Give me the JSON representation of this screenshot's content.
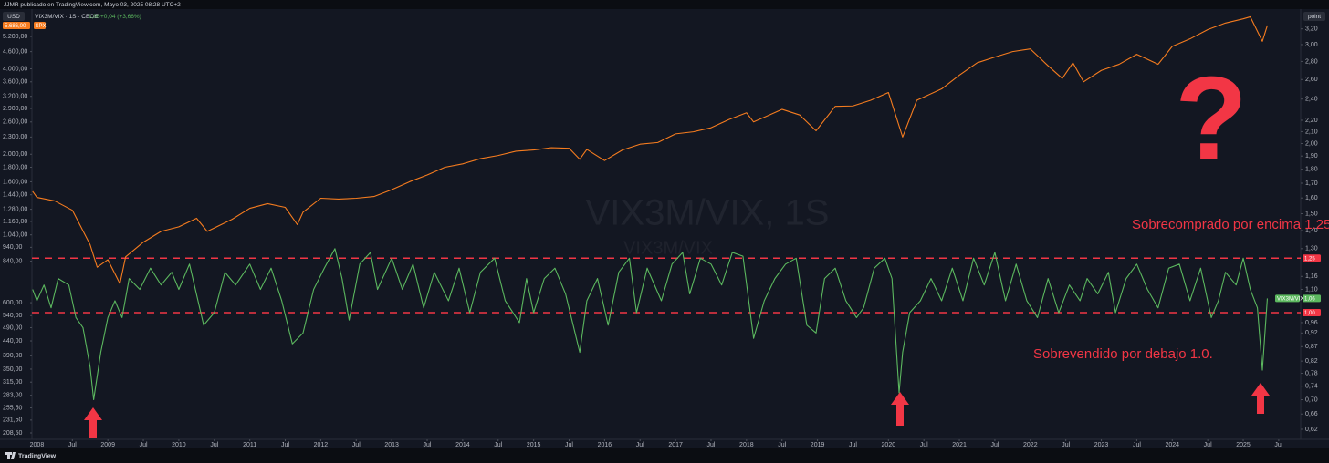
{
  "header": {
    "text": "JJMR publicado en TradingView.com, Mayo 03, 2025 08:28 UTC+2"
  },
  "toolbar": {
    "currency": "USD",
    "scale_mode": "point"
  },
  "footer": {
    "brand": "TradingView"
  },
  "chart_data": {
    "type": "line",
    "watermark": [
      "VIX3M/VIX, 1S",
      "VIX3M/VIX"
    ],
    "legend": {
      "symbol": "VIX3M/VIX · 1S · CBOE",
      "change": "+0,04 (+3,66%)"
    },
    "xlim": [
      2007.93,
      2025.81
    ],
    "xticks": [
      {
        "value": 2008,
        "label": "2008"
      },
      {
        "value": 2008.5,
        "label": "Jul"
      },
      {
        "value": 2009,
        "label": "2009"
      },
      {
        "value": 2009.5,
        "label": "Jul"
      },
      {
        "value": 2010,
        "label": "2010"
      },
      {
        "value": 2010.5,
        "label": "Jul"
      },
      {
        "value": 2011,
        "label": "2011"
      },
      {
        "value": 2011.5,
        "label": "Jul"
      },
      {
        "value": 2012,
        "label": "2012"
      },
      {
        "value": 2012.5,
        "label": "Jul"
      },
      {
        "value": 2013,
        "label": "2013"
      },
      {
        "value": 2013.5,
        "label": "Jul"
      },
      {
        "value": 2014,
        "label": "2014"
      },
      {
        "value": 2014.5,
        "label": "Jul"
      },
      {
        "value": 2015,
        "label": "2015"
      },
      {
        "value": 2015.5,
        "label": "Jul"
      },
      {
        "value": 2016,
        "label": "2016"
      },
      {
        "value": 2016.5,
        "label": "Jul"
      },
      {
        "value": 2017,
        "label": "2017"
      },
      {
        "value": 2017.5,
        "label": "Jul"
      },
      {
        "value": 2018,
        "label": "2018"
      },
      {
        "value": 2018.5,
        "label": "Jul"
      },
      {
        "value": 2019,
        "label": "2019"
      },
      {
        "value": 2019.5,
        "label": "Jul"
      },
      {
        "value": 2020,
        "label": "2020"
      },
      {
        "value": 2020.5,
        "label": "Jul"
      },
      {
        "value": 2021,
        "label": "2021"
      },
      {
        "value": 2021.5,
        "label": "Jul"
      },
      {
        "value": 2022,
        "label": "2022"
      },
      {
        "value": 2022.5,
        "label": "Jul"
      },
      {
        "value": 2023,
        "label": "2023"
      },
      {
        "value": 2023.5,
        "label": "Jul"
      },
      {
        "value": 2024,
        "label": "2024"
      },
      {
        "value": 2024.5,
        "label": "Jul"
      },
      {
        "value": 2025,
        "label": "2025"
      },
      {
        "value": 2025.5,
        "label": "Jul"
      }
    ],
    "ylim": [
      198,
      6494
    ],
    "ylog": true,
    "yticks": [
      {
        "value": 5200,
        "label": "5.200,00"
      },
      {
        "value": 4600,
        "label": "4.600,00"
      },
      {
        "value": 4000,
        "label": "4.000,00"
      },
      {
        "value": 3600,
        "label": "3.600,00"
      },
      {
        "value": 3200,
        "label": "3.200,00"
      },
      {
        "value": 2900,
        "label": "2.900,00"
      },
      {
        "value": 2600,
        "label": "2.600,00"
      },
      {
        "value": 2300,
        "label": "2.300,00"
      },
      {
        "value": 2000,
        "label": "2.000,00"
      },
      {
        "value": 1800,
        "label": "1.800,00"
      },
      {
        "value": 1600,
        "label": "1.600,00"
      },
      {
        "value": 1440,
        "label": "1.440,00"
      },
      {
        "value": 1280,
        "label": "1.280,00"
      },
      {
        "value": 1160,
        "label": "1.160,00"
      },
      {
        "value": 1040,
        "label": "1.040,00"
      },
      {
        "value": 940,
        "label": "940,00"
      },
      {
        "value": 840,
        "label": "840,00"
      },
      {
        "value": 600,
        "label": "600,00"
      },
      {
        "value": 540,
        "label": "540,00"
      },
      {
        "value": 490,
        "label": "490,00"
      },
      {
        "value": 440,
        "label": "440,00"
      },
      {
        "value": 390,
        "label": "390,00"
      },
      {
        "value": 350,
        "label": "350,00"
      },
      {
        "value": 315,
        "label": "315,00"
      },
      {
        "value": 283,
        "label": "283,00"
      },
      {
        "value": 255.5,
        "label": "255,50"
      },
      {
        "value": 231.5,
        "label": "231,50"
      },
      {
        "value": 208.5,
        "label": "208,50"
      }
    ],
    "y2lim": [
      0.595,
      3.47
    ],
    "y2log": true,
    "y2ticks": [
      {
        "value": 3.2,
        "label": "3,20"
      },
      {
        "value": 3.0,
        "label": "3,00"
      },
      {
        "value": 2.8,
        "label": "2,80"
      },
      {
        "value": 2.6,
        "label": "2,60"
      },
      {
        "value": 2.4,
        "label": "2,40"
      },
      {
        "value": 2.2,
        "label": "2,20"
      },
      {
        "value": 2.1,
        "label": "2,10"
      },
      {
        "value": 2.0,
        "label": "2,00"
      },
      {
        "value": 1.9,
        "label": "1,90"
      },
      {
        "value": 1.8,
        "label": "1,80"
      },
      {
        "value": 1.7,
        "label": "1,70"
      },
      {
        "value": 1.6,
        "label": "1,60"
      },
      {
        "value": 1.5,
        "label": "1,50"
      },
      {
        "value": 1.4,
        "label": "1,40"
      },
      {
        "value": 1.3,
        "label": "1,30"
      },
      {
        "value": 1.16,
        "label": "1,16"
      },
      {
        "value": 1.1,
        "label": "1,10"
      },
      {
        "value": 0.96,
        "label": "0,96"
      },
      {
        "value": 0.92,
        "label": "0,92"
      },
      {
        "value": 0.87,
        "label": "0,87"
      },
      {
        "value": 0.82,
        "label": "0,82"
      },
      {
        "value": 0.78,
        "label": "0,78"
      },
      {
        "value": 0.74,
        "label": "0,74"
      },
      {
        "value": 0.7,
        "label": "0,70"
      },
      {
        "value": 0.66,
        "label": "0,66"
      },
      {
        "value": 0.62,
        "label": "0,62"
      }
    ],
    "grid": false,
    "series": [
      {
        "name": "SPX",
        "color": "#f57c1f",
        "axis": "y",
        "last_label": "5.686,00",
        "x": [
          2007.94,
          2008.0,
          2008.25,
          2008.5,
          2008.75,
          2008.85,
          2009.0,
          2009.17,
          2009.25,
          2009.5,
          2009.75,
          2010.0,
          2010.25,
          2010.4,
          2010.5,
          2010.75,
          2011.0,
          2011.25,
          2011.5,
          2011.67,
          2011.75,
          2012.0,
          2012.25,
          2012.5,
          2012.75,
          2013.0,
          2013.25,
          2013.5,
          2013.75,
          2014.0,
          2014.25,
          2014.5,
          2014.75,
          2015.0,
          2015.25,
          2015.5,
          2015.65,
          2015.75,
          2016.0,
          2016.25,
          2016.5,
          2016.75,
          2017.0,
          2017.25,
          2017.5,
          2017.75,
          2018.0,
          2018.1,
          2018.25,
          2018.5,
          2018.75,
          2018.98,
          2019.25,
          2019.5,
          2019.75,
          2020.0,
          2020.2,
          2020.4,
          2020.75,
          2021.0,
          2021.25,
          2021.5,
          2021.75,
          2022.0,
          2022.25,
          2022.45,
          2022.6,
          2022.75,
          2023.0,
          2023.25,
          2023.5,
          2023.8,
          2024.0,
          2024.25,
          2024.5,
          2024.75,
          2025.0,
          2025.1,
          2025.27,
          2025.34
        ],
        "values": [
          1480,
          1410,
          1370,
          1270,
          960,
          800,
          850,
          700,
          870,
          980,
          1070,
          1110,
          1190,
          1070,
          1100,
          1180,
          1290,
          1340,
          1300,
          1130,
          1250,
          1400,
          1390,
          1400,
          1420,
          1500,
          1600,
          1690,
          1800,
          1850,
          1930,
          1980,
          2050,
          2070,
          2110,
          2100,
          1920,
          2080,
          1900,
          2070,
          2170,
          2200,
          2360,
          2400,
          2480,
          2650,
          2800,
          2600,
          2700,
          2880,
          2750,
          2420,
          2950,
          2960,
          3100,
          3300,
          2300,
          3100,
          3400,
          3800,
          4200,
          4400,
          4600,
          4700,
          4100,
          3700,
          4200,
          3600,
          3950,
          4150,
          4500,
          4150,
          4800,
          5100,
          5500,
          5800,
          6000,
          6100,
          5000,
          5686
        ]
      },
      {
        "name": "VIX3M/VIX",
        "color": "#5cb85f",
        "axis": "y2",
        "last_label": "1,06",
        "x": [
          2007.94,
          2008.0,
          2008.1,
          2008.2,
          2008.3,
          2008.45,
          2008.55,
          2008.65,
          2008.75,
          2008.8,
          2008.9,
          2009.0,
          2009.1,
          2009.2,
          2009.3,
          2009.45,
          2009.6,
          2009.75,
          2009.9,
          2010.0,
          2010.15,
          2010.35,
          2010.5,
          2010.65,
          2010.8,
          2011.0,
          2011.15,
          2011.3,
          2011.45,
          2011.6,
          2011.75,
          2011.9,
          2012.05,
          2012.2,
          2012.3,
          2012.4,
          2012.55,
          2012.7,
          2012.8,
          2013.0,
          2013.15,
          2013.3,
          2013.45,
          2013.6,
          2013.8,
          2013.95,
          2014.1,
          2014.25,
          2014.45,
          2014.6,
          2014.8,
          2014.9,
          2015.0,
          2015.15,
          2015.3,
          2015.45,
          2015.65,
          2015.75,
          2015.9,
          2016.05,
          2016.2,
          2016.35,
          2016.45,
          2016.6,
          2016.8,
          2016.95,
          2017.1,
          2017.2,
          2017.35,
          2017.5,
          2017.65,
          2017.8,
          2017.95,
          2018.1,
          2018.25,
          2018.4,
          2018.55,
          2018.7,
          2018.85,
          2018.98,
          2019.1,
          2019.25,
          2019.4,
          2019.55,
          2019.65,
          2019.8,
          2019.95,
          2020.05,
          2020.15,
          2020.2,
          2020.3,
          2020.45,
          2020.6,
          2020.75,
          2020.9,
          2021.05,
          2021.2,
          2021.35,
          2021.5,
          2021.65,
          2021.8,
          2021.95,
          2022.1,
          2022.25,
          2022.4,
          2022.55,
          2022.7,
          2022.8,
          2022.95,
          2023.1,
          2023.2,
          2023.35,
          2023.5,
          2023.65,
          2023.8,
          2023.95,
          2024.1,
          2024.25,
          2024.4,
          2024.55,
          2024.65,
          2024.75,
          2024.9,
          2025.0,
          2025.1,
          2025.2,
          2025.27,
          2025.34
        ],
        "values": [
          1.1,
          1.05,
          1.12,
          1.02,
          1.15,
          1.12,
          0.98,
          0.94,
          0.8,
          0.7,
          0.85,
          0.98,
          1.05,
          0.98,
          1.15,
          1.1,
          1.2,
          1.12,
          1.18,
          1.1,
          1.22,
          0.95,
          1.0,
          1.18,
          1.12,
          1.22,
          1.1,
          1.2,
          1.05,
          0.88,
          0.92,
          1.1,
          1.2,
          1.3,
          1.15,
          0.97,
          1.22,
          1.28,
          1.1,
          1.25,
          1.1,
          1.22,
          1.02,
          1.18,
          1.05,
          1.2,
          1.0,
          1.18,
          1.25,
          1.05,
          0.96,
          1.15,
          1.0,
          1.15,
          1.2,
          1.08,
          0.85,
          1.05,
          1.15,
          0.95,
          1.18,
          1.25,
          1.0,
          1.2,
          1.05,
          1.22,
          1.28,
          1.08,
          1.25,
          1.22,
          1.12,
          1.28,
          1.26,
          0.9,
          1.05,
          1.15,
          1.22,
          1.25,
          0.95,
          0.92,
          1.15,
          1.2,
          1.05,
          0.98,
          1.02,
          1.2,
          1.25,
          1.15,
          0.72,
          0.85,
          1.0,
          1.05,
          1.15,
          1.05,
          1.2,
          1.05,
          1.25,
          1.12,
          1.28,
          1.05,
          1.22,
          1.05,
          0.98,
          1.15,
          1.0,
          1.12,
          1.05,
          1.15,
          1.08,
          1.18,
          1.0,
          1.15,
          1.22,
          1.1,
          1.02,
          1.2,
          1.22,
          1.05,
          1.2,
          0.98,
          1.05,
          1.18,
          1.12,
          1.25,
          1.1,
          1.02,
          0.79,
          1.06
        ]
      }
    ],
    "reference_lines": [
      {
        "value": 1.25,
        "label": "1,25",
        "axis": "y2",
        "color": "#f23645"
      },
      {
        "value": 1.0,
        "label": "1,00",
        "axis": "y2",
        "color": "#f23645"
      }
    ],
    "annotations": [
      {
        "text": "Sobrecomprado por encima 1.25."
      },
      {
        "text": "Sobrevendido por debajo 1.0."
      },
      {
        "text": "?"
      }
    ]
  }
}
